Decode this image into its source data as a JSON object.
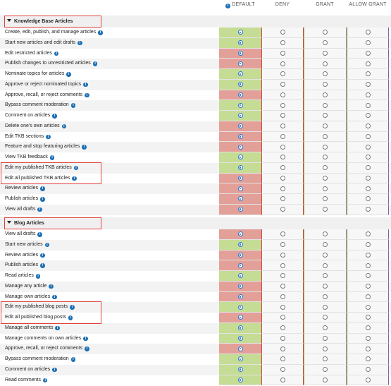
{
  "columns": {
    "default": "DEFAULT",
    "deny": "DENY",
    "grant": "GRANT",
    "allow_grant": "ALLOW GRANT"
  },
  "icons": {
    "info": "info-icon",
    "collapse": "triangle-down-icon"
  },
  "colors": {
    "default_allowed": "#c5dc95",
    "default_denied": "#e3a099",
    "deny_border": "#c9463d",
    "grant_border": "#9bbb59",
    "allow_grant_border": "#8064a2",
    "highlight": "#e0413a"
  },
  "sections": [
    {
      "title": "Knowledge Base Articles",
      "rows": [
        {
          "label": "Create, edit, publish, and manage articles",
          "default": "allowed"
        },
        {
          "label": "Start new articles and edit drafts",
          "default": "allowed"
        },
        {
          "label": "Edit restricted articles",
          "default": "denied"
        },
        {
          "label": "Publish changes to unrestricted articles",
          "default": "denied"
        },
        {
          "label": "Nominate topics for articles",
          "default": "allowed"
        },
        {
          "label": "Approve or reject nominated topics",
          "default": "allowed"
        },
        {
          "label": "Approve, recall, or reject comments",
          "default": "denied"
        },
        {
          "label": "Bypass comment moderation",
          "default": "allowed"
        },
        {
          "label": "Comment on articles",
          "default": "allowed"
        },
        {
          "label": "Delete one's own articles",
          "default": "denied"
        },
        {
          "label": "Edit TKB sections",
          "default": "denied"
        },
        {
          "label": "Feature and stop featuring articles",
          "default": "denied"
        },
        {
          "label": "View TKB feedback",
          "default": "allowed"
        },
        {
          "label": "Edit my published TKB articles",
          "default": "allowed"
        },
        {
          "label": "Edit all published TKB articles",
          "default": "denied"
        },
        {
          "label": "Review articles",
          "default": "denied"
        },
        {
          "label": "Publish articles",
          "default": "denied"
        },
        {
          "label": "View all drafts",
          "default": "denied"
        }
      ]
    },
    {
      "title": "Blog Articles",
      "rows": [
        {
          "label": "View all drafts",
          "default": "denied"
        },
        {
          "label": "Start new articles",
          "default": "allowed"
        },
        {
          "label": "Review articles",
          "default": "denied"
        },
        {
          "label": "Publish articles",
          "default": "denied"
        },
        {
          "label": "Read articles",
          "default": "allowed"
        },
        {
          "label": "Manage any article",
          "default": "denied"
        },
        {
          "label": "Manage own articles",
          "default": "denied"
        },
        {
          "label": "Edit my published blog posts",
          "default": "allowed"
        },
        {
          "label": "Edit all published blog posts",
          "default": "denied"
        },
        {
          "label": "Manage all comments",
          "default": "allowed"
        },
        {
          "label": "Manage comments on own articles",
          "default": "allowed"
        },
        {
          "label": "Approve, recall, or reject comments",
          "default": "denied"
        },
        {
          "label": "Bypass comment moderation",
          "default": "allowed"
        },
        {
          "label": "Comment on articles",
          "default": "allowed"
        },
        {
          "label": "Read comments",
          "default": "allowed"
        }
      ]
    }
  ]
}
